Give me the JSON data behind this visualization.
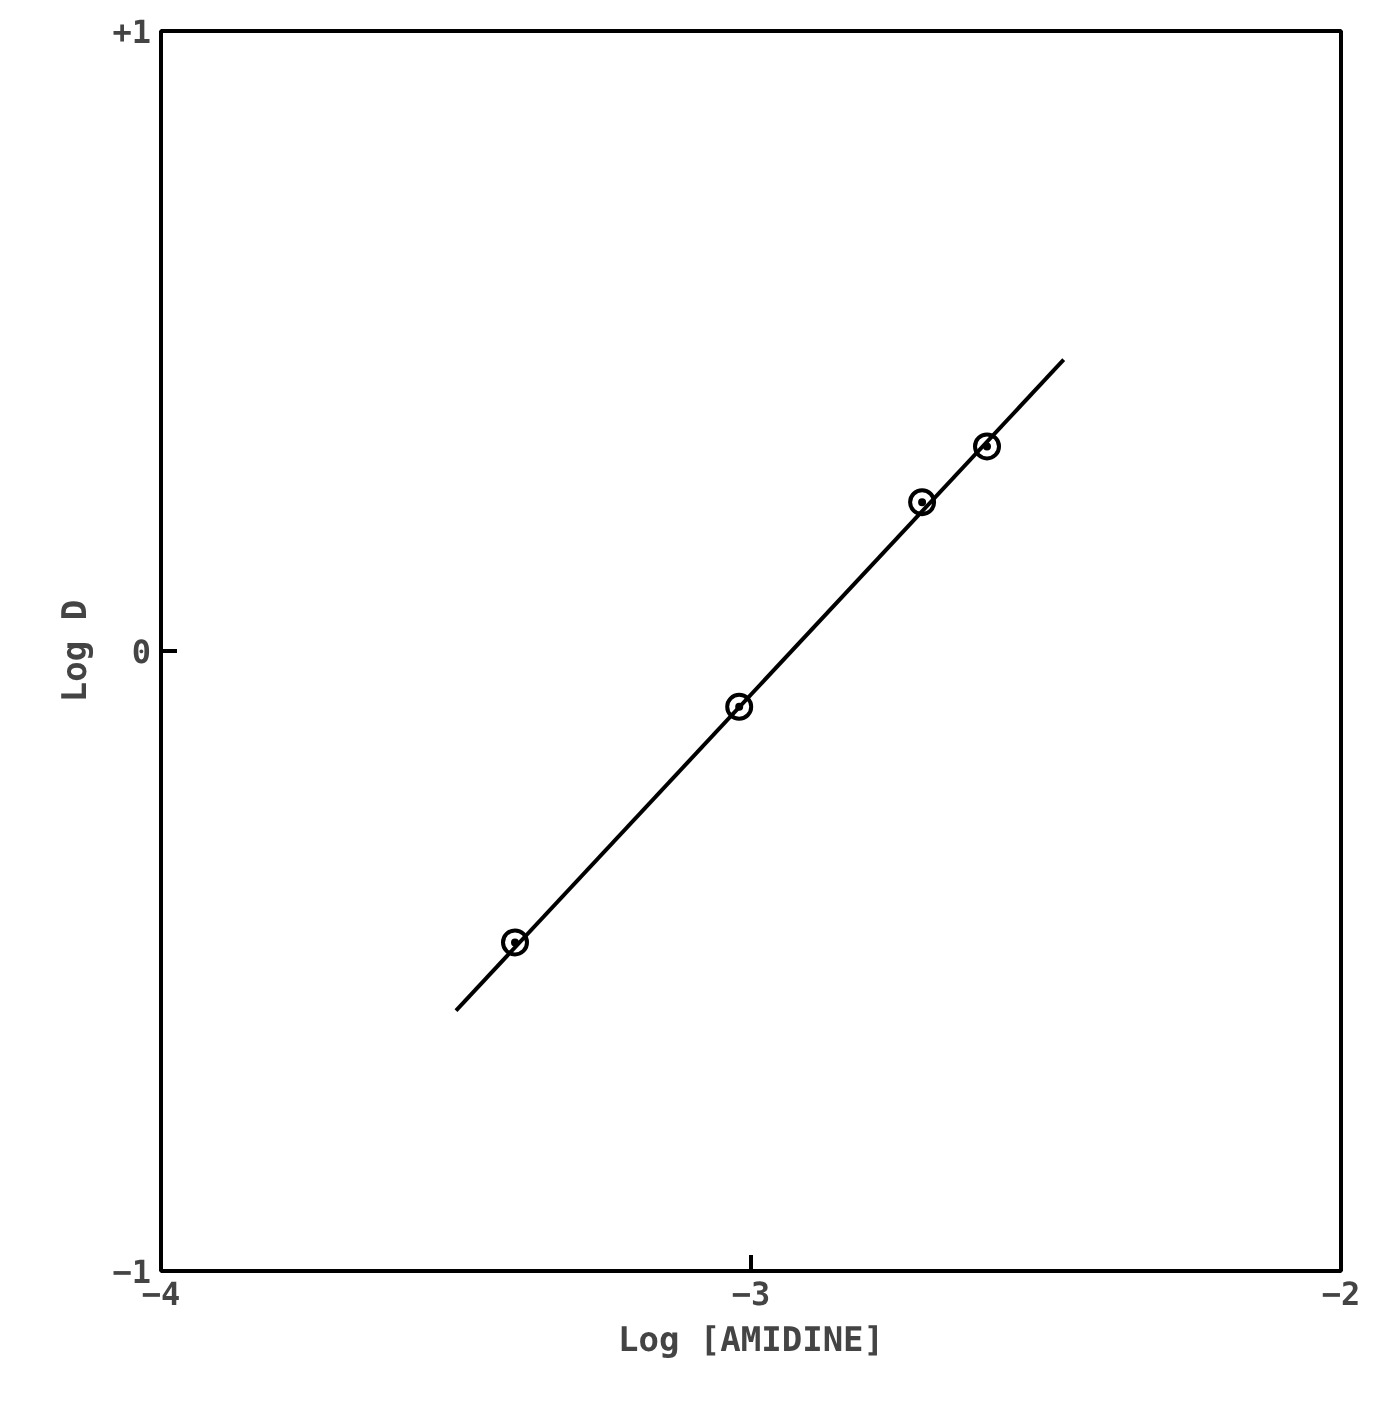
{
  "chart_data": {
    "type": "scatter",
    "xlabel": "Log [AMIDINE]",
    "ylabel": "Log D",
    "xlim": [
      -4,
      -2
    ],
    "ylim": [
      -1,
      1
    ],
    "xticks": [
      -4,
      -3,
      -2
    ],
    "yticks": [
      {
        "value": 1,
        "label": "+1"
      },
      0,
      -1
    ],
    "marker": "circle",
    "grid": false,
    "series": [
      {
        "color": "#000000",
        "x": [
          -3.4,
          -3.02,
          -2.71,
          -2.6
        ],
        "values": [
          -0.47,
          -0.09,
          0.24,
          0.33
        ]
      },
      {
        "type": "line",
        "color": "#000000",
        "x": [
          -3.5,
          -2.47
        ],
        "values": [
          -0.58,
          0.47
        ],
        "line_style": "solid",
        "marker": "none"
      }
    ]
  }
}
